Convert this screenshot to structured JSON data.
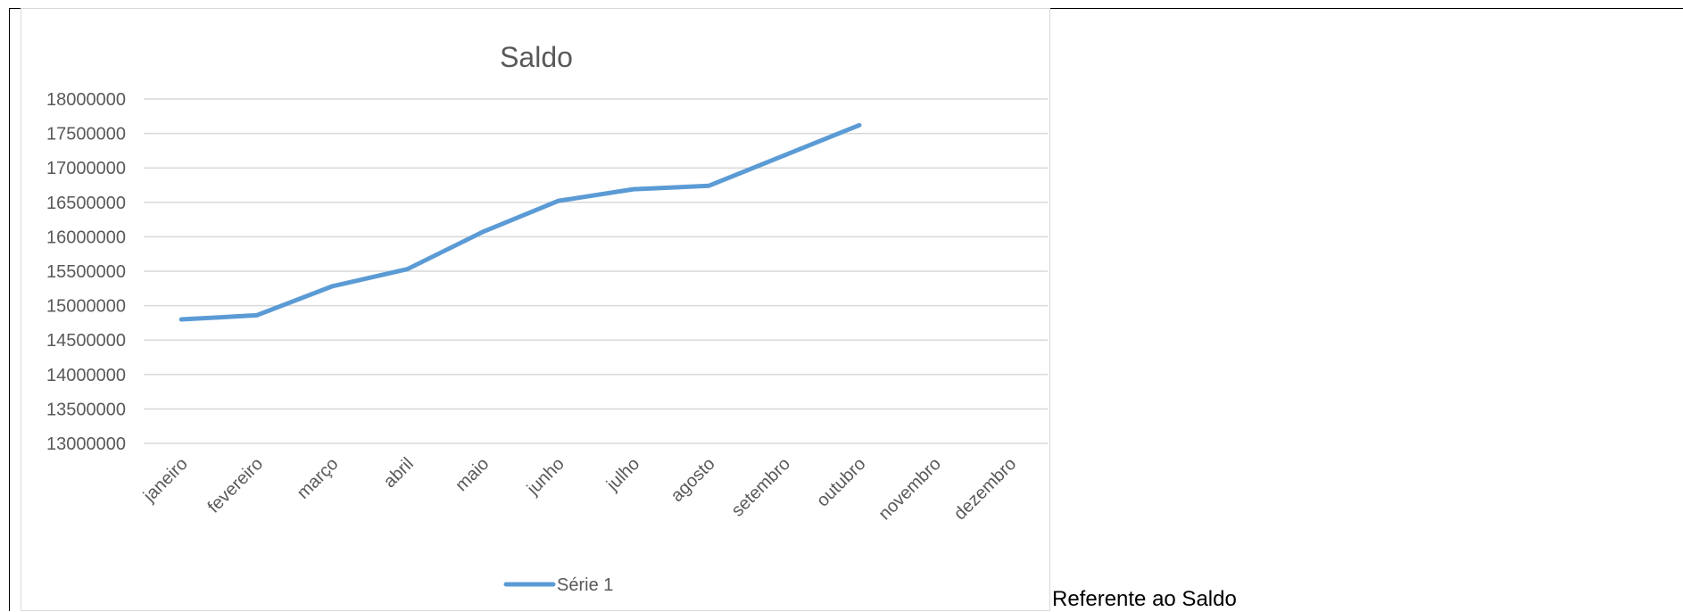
{
  "caption": "Referente ao Saldo",
  "chart_data": {
    "type": "line",
    "title": "Saldo",
    "xlabel": "",
    "ylabel": "",
    "categories": [
      "janeiro",
      "fevereiro",
      "março",
      "abril",
      "maio",
      "junho",
      "julho",
      "agosto",
      "setembro",
      "outubro",
      "novembro",
      "dezembro"
    ],
    "series": [
      {
        "name": "Série 1",
        "color": "#5b9bd5",
        "values": [
          14800000,
          14860000,
          15280000,
          15530000,
          16070000,
          16520000,
          16690000,
          16740000,
          17180000,
          17620000,
          null,
          null
        ]
      }
    ],
    "ylim": [
      13000000,
      18000000
    ],
    "ytick_step": 500000,
    "grid": true,
    "legend": "bottom"
  }
}
